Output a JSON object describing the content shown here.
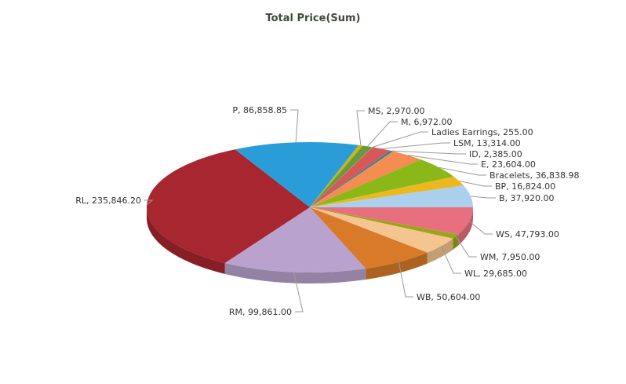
{
  "chart_data": {
    "type": "pie",
    "title": "Total Price(Sum)",
    "style": "3d",
    "slices": [
      {
        "label": "WS",
        "value": 47793.0,
        "display": "WS, 47,793.00",
        "color": "#e8707e"
      },
      {
        "label": "WM",
        "value": 7950.0,
        "display": "WM, 7,950.00",
        "color": "#9aa51a"
      },
      {
        "label": "WL",
        "value": 29685.0,
        "display": "WL, 29,685.00",
        "color": "#f5c590"
      },
      {
        "label": "WB",
        "value": 50604.0,
        "display": "WB, 50,604.00",
        "color": "#d97a2a"
      },
      {
        "label": "RM",
        "value": 99861.0,
        "display": "RM, 99,861.00",
        "color": "#b9a2ce"
      },
      {
        "label": "RL",
        "value": 235846.2,
        "display": "RL, 235,846.20",
        "color": "#a8262f"
      },
      {
        "label": "P",
        "value": 86858.85,
        "display": "P, 86,858.85",
        "color": "#2a9dd8"
      },
      {
        "label": "MS",
        "value": 2970.0,
        "display": "MS, 2,970.00",
        "color": "#c8b51e"
      },
      {
        "label": "M",
        "value": 6972.0,
        "display": "M, 6,972.00",
        "color": "#6a9a3a"
      },
      {
        "label": "Ladies Earrings",
        "value": 255.0,
        "display": "Ladies Earrings, 255.00",
        "color": "#b0b0e0"
      },
      {
        "label": "LSM",
        "value": 13314.0,
        "display": "LSM, 13,314.00",
        "color": "#d85858"
      },
      {
        "label": "ID",
        "value": 2385.0,
        "display": "ID, 2,385.00",
        "color": "#2a8a9a"
      },
      {
        "label": "E",
        "value": 23604.0,
        "display": "E, 23,604.00",
        "color": "#f58c52"
      },
      {
        "label": "Bracelets",
        "value": 36838.98,
        "display": "Bracelets, 36,838.98",
        "color": "#8ab818"
      },
      {
        "label": "BP",
        "value": 16824.0,
        "display": "BP, 16,824.00",
        "color": "#ecb820"
      },
      {
        "label": "B",
        "value": 37920.0,
        "display": "B, 37,920.00",
        "color": "#aad0ee"
      }
    ]
  }
}
